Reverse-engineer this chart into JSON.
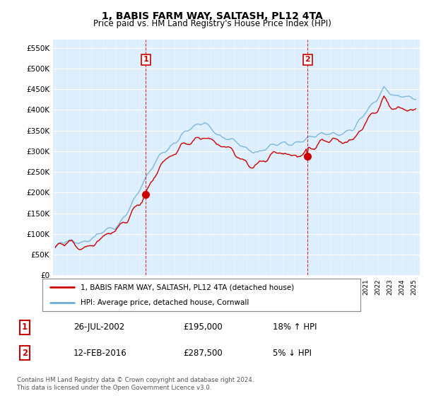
{
  "title": "1, BABIS FARM WAY, SALTASH, PL12 4TA",
  "subtitle": "Price paid vs. HM Land Registry's House Price Index (HPI)",
  "ylabel_ticks": [
    "£0",
    "£50K",
    "£100K",
    "£150K",
    "£200K",
    "£250K",
    "£300K",
    "£350K",
    "£400K",
    "£450K",
    "£500K",
    "£550K"
  ],
  "ytick_vals": [
    0,
    50000,
    100000,
    150000,
    200000,
    250000,
    300000,
    350000,
    400000,
    450000,
    500000,
    550000
  ],
  "ylim": [
    0,
    570000
  ],
  "xlim_start": 1994.8,
  "xlim_end": 2025.5,
  "hpi_color": "#6baed6",
  "price_color": "#cc0000",
  "marker1_x": 2002.57,
  "marker1_y": 195000,
  "marker1_label": "1",
  "marker2_x": 2016.12,
  "marker2_y": 287500,
  "marker2_label": "2",
  "legend_line1": "1, BABIS FARM WAY, SALTASH, PL12 4TA (detached house)",
  "legend_line2": "HPI: Average price, detached house, Cornwall",
  "table_row1": [
    "1",
    "26-JUL-2002",
    "£195,000",
    "18% ↑ HPI"
  ],
  "table_row2": [
    "2",
    "12-FEB-2016",
    "£287,500",
    "5% ↓ HPI"
  ],
  "footnote": "Contains HM Land Registry data © Crown copyright and database right 2024.\nThis data is licensed under the Open Government Licence v3.0.",
  "background_color": "#ffffff",
  "plot_bg_color": "#ddeeff"
}
